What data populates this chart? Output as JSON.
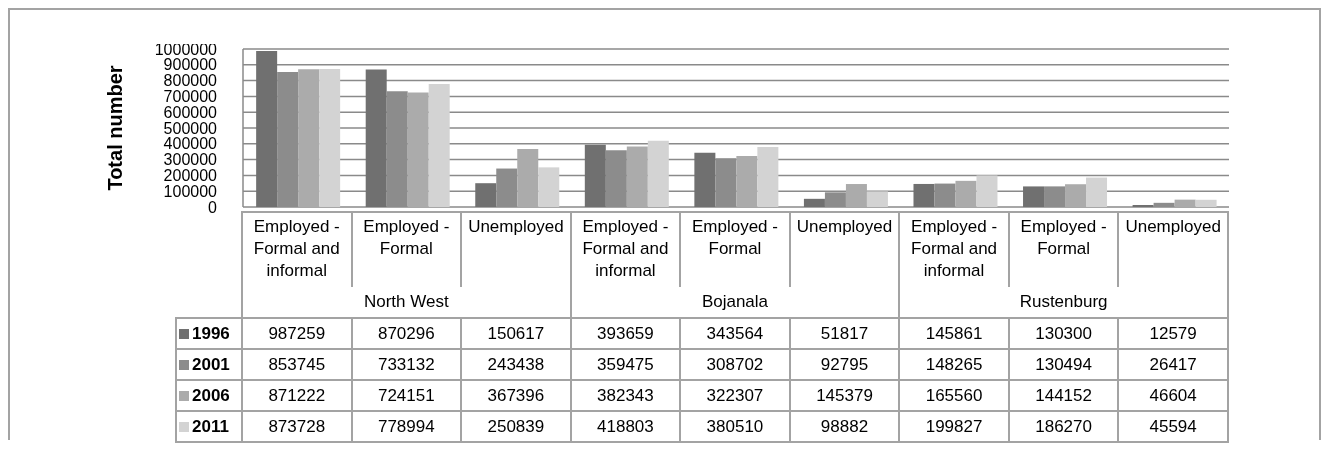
{
  "chart_data": {
    "type": "bar",
    "ylabel": "Total number",
    "categories": [
      "Employed - Formal and informal",
      "Employed - Formal",
      "Unemployed",
      "Employed - Formal and informal",
      "Employed - Formal",
      "Unemployed",
      "Employed - Formal and informal",
      "Employed - Formal",
      "Unemployed"
    ],
    "annotations": [
      "North West",
      "Bojanala",
      "Rustenburg"
    ],
    "series": [
      {
        "name": "1996",
        "color": "#707070",
        "values": [
          987259,
          870296,
          150617,
          393659,
          343564,
          51817,
          145861,
          130300,
          12579
        ]
      },
      {
        "name": "2001",
        "color": "#8c8c8c",
        "values": [
          853745,
          733132,
          243438,
          359475,
          308702,
          92795,
          148265,
          130494,
          26417
        ]
      },
      {
        "name": "2006",
        "color": "#ababab",
        "values": [
          871222,
          724151,
          367396,
          382343,
          322307,
          145379,
          165560,
          144152,
          46604
        ]
      },
      {
        "name": "2011",
        "color": "#d3d3d3",
        "values": [
          873728,
          778994,
          250839,
          418803,
          380510,
          98882,
          199827,
          186270,
          45594
        ]
      }
    ],
    "ylim": [
      0,
      1000000
    ],
    "yticks": [
      0,
      100000,
      200000,
      300000,
      400000,
      500000,
      600000,
      700000,
      800000,
      900000,
      1000000
    ],
    "grid": "y",
    "legend": "bottom left",
    "data_labels": true
  }
}
